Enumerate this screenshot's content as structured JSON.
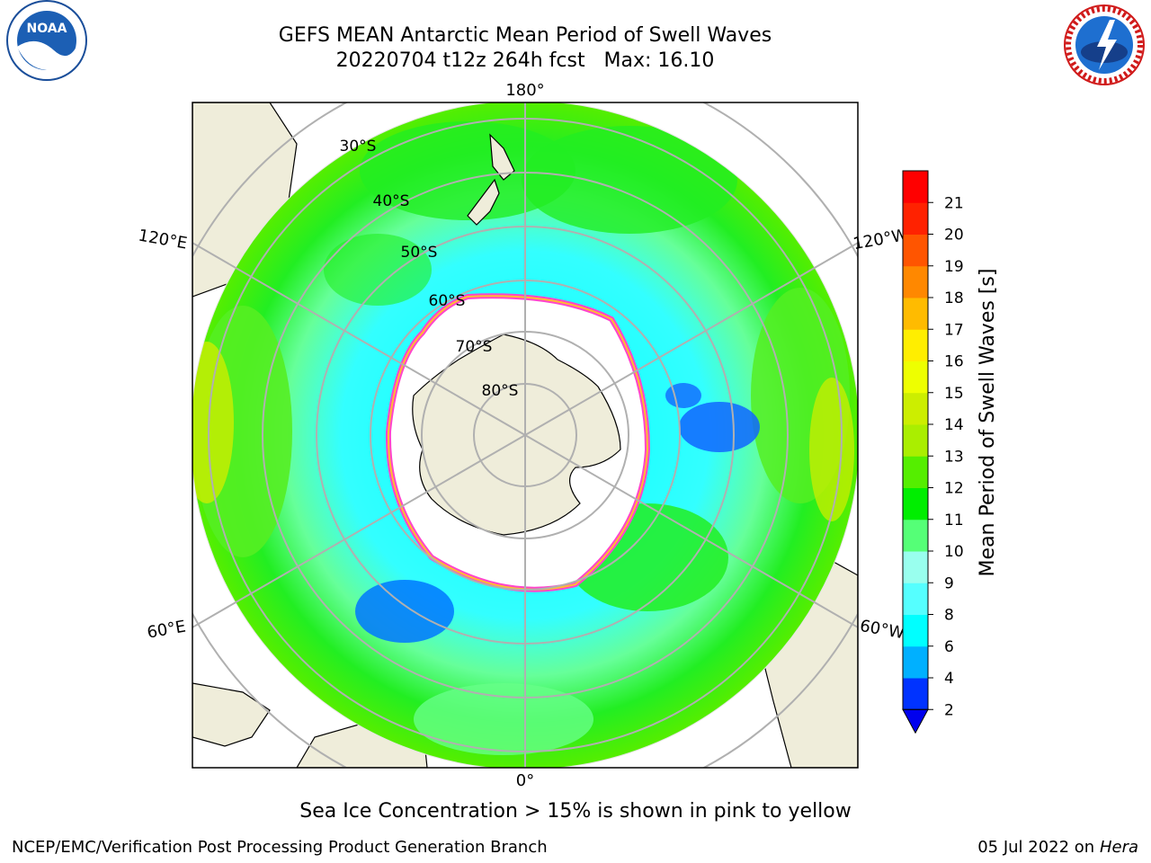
{
  "header": {
    "title_line1": "GEFS MEAN Antarctic Mean Period of Swell Waves",
    "title_line2": "20220704 t12z 264h fcst   Max: 16.10"
  },
  "logos": {
    "left": "noaa-logo",
    "right": "national-weather-service-logo"
  },
  "map": {
    "projection": "south-polar-stereographic",
    "lon_labels": {
      "top": "180°",
      "bottom": "0°",
      "upper_left": "120°E",
      "upper_right": "120°W",
      "lower_left": "60°E",
      "lower_right": "60°W"
    },
    "lat_labels": [
      "30°S",
      "40°S",
      "50°S",
      "60°S",
      "70°S",
      "80°S"
    ],
    "land_color": "#efedda",
    "ice_free_sea_ice_color": "#ffffff",
    "grid_color": "#b0b0b0"
  },
  "colorbar": {
    "label": "Mean Period of Swell Waves [s]",
    "ticks": [
      "2",
      "4",
      "6",
      "8",
      "9",
      "10",
      "11",
      "12",
      "13",
      "14",
      "15",
      "16",
      "17",
      "18",
      "19",
      "20",
      "21"
    ],
    "colors": [
      "#0033ff",
      "#00b0ff",
      "#00ffff",
      "#55ffff",
      "#99ffee",
      "#55ff77",
      "#00ee00",
      "#55ee00",
      "#aaee00",
      "#ccee00",
      "#eeff00",
      "#ffee00",
      "#ffbb00",
      "#ff8800",
      "#ff5500",
      "#ff2200",
      "#ff0000"
    ],
    "under_color": "#0000ee",
    "extend": "min"
  },
  "caption": "Sea Ice Concentration > 15% is shown in pink to yellow",
  "footer": {
    "left": "NCEP/EMC/Verification Post Processing Product Generation Branch",
    "date": "05 Jul 2022 on",
    "machine": "Hera"
  }
}
